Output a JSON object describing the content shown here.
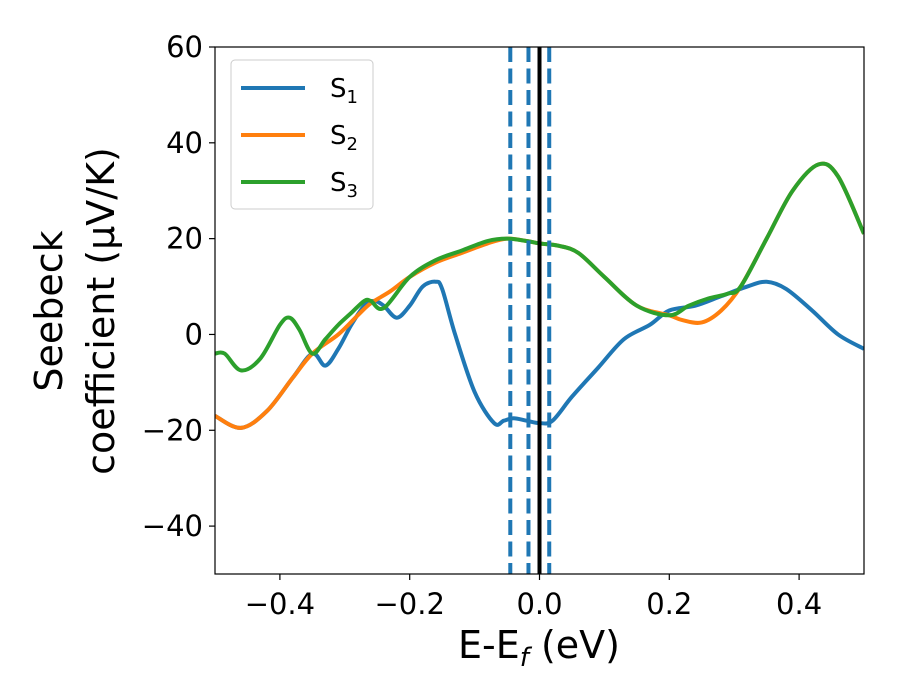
{
  "chart_data": {
    "type": "line",
    "xlabel": "E-E",
    "xlabel_sub": "f",
    "xlabel_unit": " (eV)",
    "ylabel_line1": "Seebeck",
    "ylabel_line2": "coefficient  (μV/K)",
    "xlim": [
      -0.5,
      0.5
    ],
    "ylim": [
      -50,
      60
    ],
    "xticks": [
      -0.4,
      -0.2,
      0.0,
      0.2,
      0.4
    ],
    "xtick_labels": [
      "−0.4",
      "−0.2",
      "0.0",
      "0.2",
      "0.4"
    ],
    "yticks": [
      -40,
      -20,
      0,
      20,
      40,
      60
    ],
    "ytick_labels": [
      "−40",
      "−20",
      "0",
      "20",
      "40",
      "60"
    ],
    "legend_position": "top-left",
    "series": [
      {
        "name": "S",
        "sub": "1",
        "color": "#1f77b4",
        "x": [
          -0.5,
          -0.46,
          -0.42,
          -0.38,
          -0.35,
          -0.33,
          -0.31,
          -0.29,
          -0.27,
          -0.255,
          -0.24,
          -0.22,
          -0.2,
          -0.18,
          -0.16,
          -0.15,
          -0.13,
          -0.1,
          -0.07,
          -0.055,
          -0.04,
          -0.02,
          0.0,
          0.02,
          0.05,
          0.09,
          0.13,
          0.17,
          0.2,
          0.24,
          0.28,
          0.32,
          0.35,
          0.38,
          0.42,
          0.46,
          0.5
        ],
        "values": [
          -17,
          -19.5,
          -16,
          -9,
          -4,
          -6.5,
          -3,
          2,
          6,
          7,
          6,
          3.5,
          6,
          10,
          11,
          9.5,
          0,
          -12,
          -18.5,
          -18,
          -17.5,
          -18,
          -18.5,
          -18,
          -13,
          -7,
          -1,
          2,
          5,
          6,
          8,
          10,
          11,
          9.5,
          5,
          0,
          -3
        ]
      },
      {
        "name": "S",
        "sub": "2",
        "color": "#ff7f0e",
        "x": [
          -0.5,
          -0.46,
          -0.42,
          -0.38,
          -0.35,
          -0.31,
          -0.28,
          -0.26,
          -0.23,
          -0.2,
          -0.16,
          -0.12,
          -0.08,
          -0.05,
          -0.02,
          0.0,
          0.03,
          0.06,
          0.1,
          0.15,
          0.2,
          0.22,
          0.25,
          0.28,
          0.31,
          0.35,
          0.39,
          0.43,
          0.46,
          0.5
        ],
        "values": [
          -17,
          -19.5,
          -16,
          -9,
          -4,
          0,
          4,
          6.5,
          9,
          12,
          15,
          17,
          19,
          20,
          19.5,
          19,
          18.5,
          17,
          12,
          6,
          4,
          3,
          2.5,
          5,
          10,
          20,
          30,
          35.5,
          33,
          21
        ]
      },
      {
        "name": "S",
        "sub": "3",
        "color": "#2ca02c",
        "x": [
          -0.5,
          -0.485,
          -0.46,
          -0.43,
          -0.4,
          -0.385,
          -0.37,
          -0.35,
          -0.33,
          -0.31,
          -0.29,
          -0.27,
          -0.26,
          -0.24,
          -0.2,
          -0.16,
          -0.12,
          -0.08,
          -0.05,
          -0.02,
          0.0,
          0.03,
          0.06,
          0.1,
          0.15,
          0.2,
          0.23,
          0.26,
          0.29,
          0.31,
          0.35,
          0.39,
          0.43,
          0.46,
          0.5
        ],
        "values": [
          -4,
          -4,
          -7.5,
          -5,
          2,
          3.5,
          1,
          -4,
          -1,
          2,
          4.5,
          7,
          7,
          5.5,
          12,
          15.5,
          17.5,
          19.5,
          20,
          19.5,
          19,
          18.5,
          17,
          12,
          6,
          4,
          6,
          7.5,
          8.5,
          10,
          20,
          30,
          35.5,
          33,
          21
        ]
      }
    ],
    "vlines": [
      {
        "x": -0.045,
        "style": "dashed",
        "color": "#1f77b4"
      },
      {
        "x": -0.017,
        "style": "dashed",
        "color": "#1f77b4"
      },
      {
        "x": 0.015,
        "style": "dashed",
        "color": "#1f77b4"
      },
      {
        "x": 0.0,
        "style": "solid",
        "color": "#000000"
      }
    ]
  }
}
